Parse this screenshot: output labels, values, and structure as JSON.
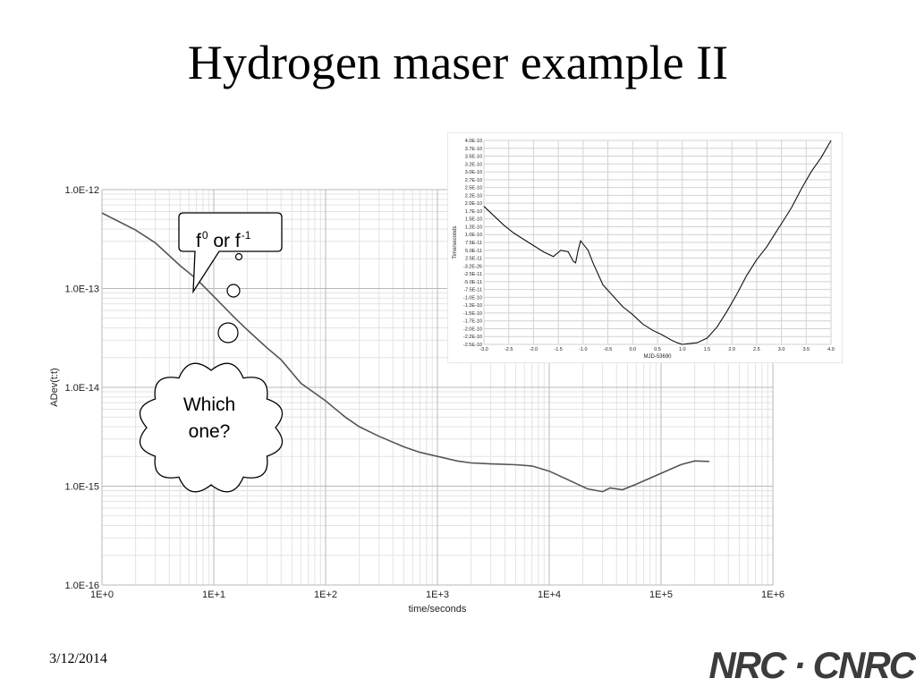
{
  "slide": {
    "title": "Hydrogen maser example II",
    "date": "3/12/2014",
    "logo": "NRC · CNRC"
  },
  "callouts": {
    "speech": {
      "base": "f",
      "sup0": "0",
      "middle": " or f",
      "sup1": "-1"
    },
    "cloud": {
      "line1": "Which",
      "line2": "one?"
    }
  },
  "chart_data": [
    {
      "type": "line",
      "xscale": "log",
      "yscale": "log",
      "xlabel": "time/seconds",
      "ylabel": "ADev(t:t)",
      "xlim": [
        1,
        1000000
      ],
      "ylim": [
        1e-16,
        1e-12
      ],
      "xticks": [
        {
          "v": 1,
          "label": "1E+0"
        },
        {
          "v": 10,
          "label": "1E+1"
        },
        {
          "v": 100,
          "label": "1E+2"
        },
        {
          "v": 1000,
          "label": "1E+3"
        },
        {
          "v": 10000,
          "label": "1E+4"
        },
        {
          "v": 100000,
          "label": "1E+5"
        },
        {
          "v": 1000000,
          "label": "1E+6"
        }
      ],
      "yticks": [
        {
          "v": 1e-12,
          "label": "1.0E-12"
        },
        {
          "v": 1e-13,
          "label": "1.0E-13"
        },
        {
          "v": 1e-14,
          "label": "1.0E-14"
        },
        {
          "v": 1e-15,
          "label": "1.0E-15"
        },
        {
          "v": 1e-16,
          "label": "1.0E-16"
        }
      ],
      "grid": true,
      "x": [
        1,
        2,
        3,
        5,
        7,
        10,
        15,
        20,
        30,
        40,
        60,
        100,
        150,
        200,
        300,
        500,
        700,
        1000,
        1500,
        2000,
        3000,
        5000,
        7000,
        10000,
        15000,
        22000,
        30000,
        35000,
        45000,
        60000,
        100000,
        150000,
        200000,
        270000
      ],
      "y": [
        5.8e-13,
        3.9e-13,
        2.9e-13,
        1.7e-13,
        1.25e-13,
        8.3e-14,
        5.2e-14,
        3.8e-14,
        2.5e-14,
        1.9e-14,
        1.1e-14,
        7.3e-15,
        5e-15,
        4e-15,
        3.2e-15,
        2.5e-15,
        2.2e-15,
        2e-15,
        1.8e-15,
        1.72e-15,
        1.68e-15,
        1.65e-15,
        1.6e-15,
        1.42e-15,
        1.15e-15,
        9.4e-16,
        8.8e-16,
        9.6e-16,
        9.2e-16,
        1.05e-15,
        1.35e-15,
        1.65e-15,
        1.8e-15,
        1.78e-15
      ]
    },
    {
      "type": "line",
      "xlabel": "MJD-53690",
      "ylabel": "Time/seconds",
      "xlim": [
        -3.0,
        4.0
      ],
      "ylim": [
        -2.5e-10,
        4e-10
      ],
      "xticklabels": [
        "-3.0",
        "-2.5",
        "-2.0",
        "-1.5",
        "-1.0",
        "-0.5",
        "0.0",
        "0.5",
        "1.0",
        "1.5",
        "2.0",
        "2.5",
        "3.0",
        "3.5",
        "4.0"
      ],
      "yticklabels": [
        "4.0E-10",
        "3.7E-10",
        "3.5E-10",
        "3.2E-10",
        "3.0E-10",
        "2.7E-10",
        "2.5E-10",
        "2.2E-10",
        "2.0E-10",
        "1.7E-10",
        "1.5E-10",
        "1.2E-10",
        "1.0E-10",
        "7.5E-11",
        "5.0E-11",
        "2.5E-11",
        "-3.2E-26",
        "-2.5E-11",
        "-5.0E-11",
        "-7.5E-11",
        "-1.0E-10",
        "-1.3E-10",
        "-1.5E-10",
        "-1.7E-10",
        "-2.0E-10",
        "-2.2E-10",
        "-2.5E-10"
      ],
      "grid": true,
      "x": [
        -3.0,
        -2.8,
        -2.6,
        -2.4,
        -2.2,
        -2.0,
        -1.8,
        -1.6,
        -1.45,
        -1.3,
        -1.2,
        -1.15,
        -1.1,
        -1.05,
        -1.0,
        -0.9,
        -0.8,
        -0.6,
        -0.4,
        -0.2,
        0.0,
        0.2,
        0.4,
        0.6,
        0.8,
        0.9,
        1.0,
        1.1,
        1.3,
        1.5,
        1.7,
        1.9,
        2.1,
        2.3,
        2.5,
        2.7,
        2.9,
        3.0,
        3.2,
        3.4,
        3.6,
        3.8,
        4.0
      ],
      "y": [
        1.9e-10,
        1.6e-10,
        1.3e-10,
        1.05e-10,
        8.5e-11,
        6.5e-11,
        4.5e-11,
        3e-11,
        5e-11,
        4.5e-11,
        1.5e-11,
        1e-11,
        5e-11,
        8e-11,
        7e-11,
        5e-11,
        1e-11,
        -6e-11,
        -9.5e-11,
        -1.3e-10,
        -1.55e-10,
        -1.85e-10,
        -2.05e-10,
        -2.2e-10,
        -2.38e-10,
        -2.45e-10,
        -2.5e-10,
        -2.48e-10,
        -2.45e-10,
        -2.3e-10,
        -1.95e-10,
        -1.45e-10,
        -9e-11,
        -3e-11,
        2e-11,
        6e-11,
        1.1e-10,
        1.35e-10,
        1.85e-10,
        2.45e-10,
        3e-10,
        3.45e-10,
        4e-10
      ]
    }
  ]
}
